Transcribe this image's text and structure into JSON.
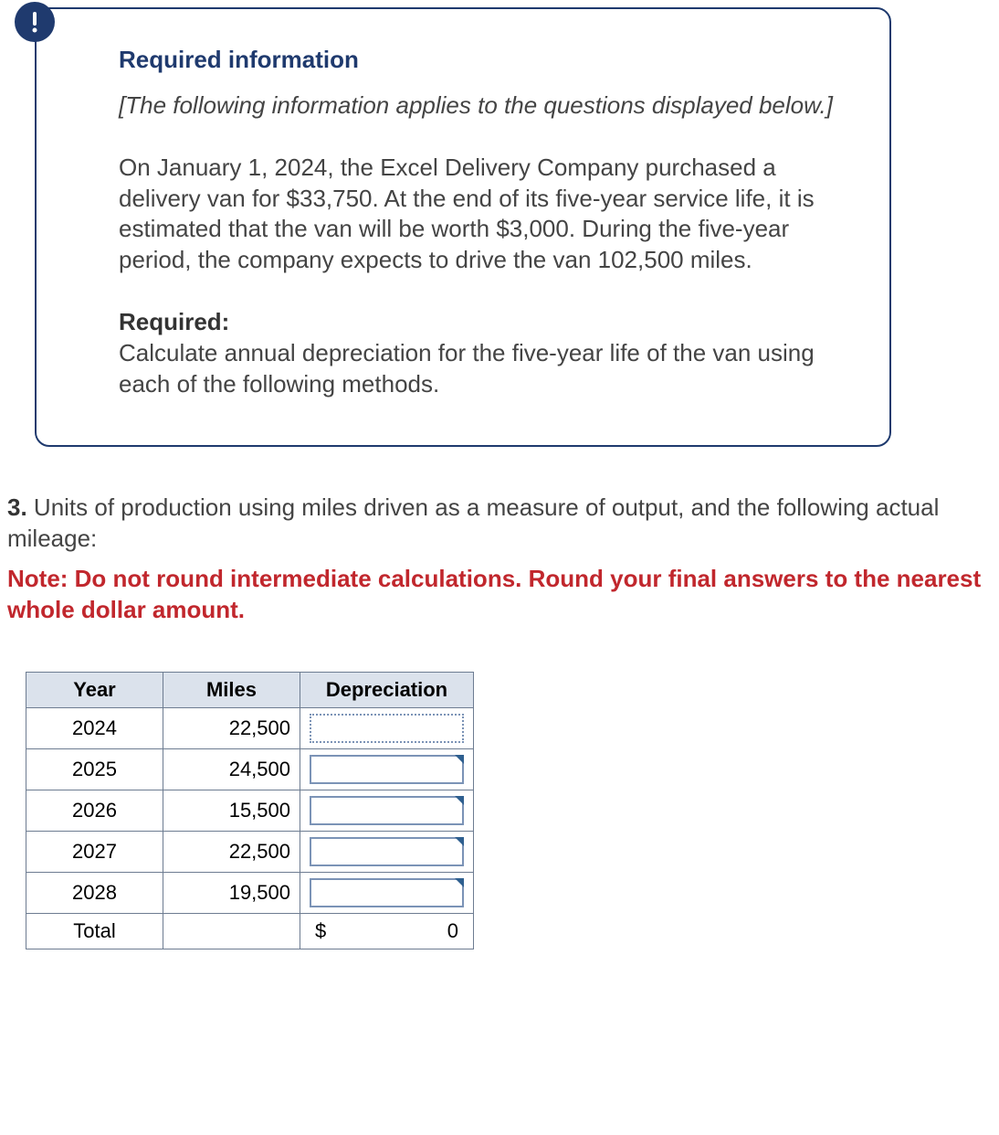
{
  "info": {
    "heading": "Required information",
    "italic_note": "[The following information applies to the questions displayed below.]",
    "body": "On January 1, 2024, the Excel Delivery Company purchased a delivery van for $33,750. At the end of its five-year service life, it is estimated that the van will be worth $3,000. During the five-year period, the company expects to drive the van 102,500 miles.",
    "required_label": "Required:",
    "required_text": "Calculate annual depreciation for the five-year life of the van using each of the following methods."
  },
  "question": {
    "number": "3.",
    "text": " Units of production using miles driven as a measure of output, and the following actual mileage:",
    "note": "Note: Do not round intermediate calculations. Round your final answers to the nearest whole dollar amount."
  },
  "table": {
    "columns": [
      "Year",
      "Miles",
      "Depreciation"
    ],
    "rows": [
      {
        "year": "2024",
        "miles": "22,500",
        "dep": "",
        "active": true,
        "tri": false
      },
      {
        "year": "2025",
        "miles": "24,500",
        "dep": "",
        "active": false,
        "tri": true
      },
      {
        "year": "2026",
        "miles": "15,500",
        "dep": "",
        "active": false,
        "tri": true
      },
      {
        "year": "2027",
        "miles": "22,500",
        "dep": "",
        "active": false,
        "tri": true
      },
      {
        "year": "2028",
        "miles": "19,500",
        "dep": "",
        "active": false,
        "tri": true
      }
    ],
    "total_label": "Total",
    "total_currency": "$",
    "total_value": "0"
  },
  "colors": {
    "border": "#1f3a6e",
    "header_bg": "#dbe2ec",
    "cell_border": "#6d7c91",
    "warning": "#c1272d"
  }
}
